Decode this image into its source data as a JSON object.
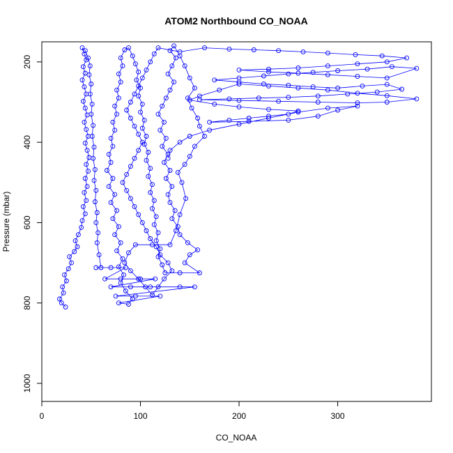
{
  "chart_data": {
    "type": "scatter",
    "title": "ATOM2 Northbound CO_NOAA",
    "xlabel": "CO_NOAA",
    "ylabel": "Pressure (mbar)",
    "xlim": [
      0,
      395
    ],
    "ylim": [
      1045,
      150
    ],
    "y_reversed": true,
    "x_ticks": [
      0,
      100,
      200,
      300
    ],
    "y_ticks": [
      200,
      400,
      600,
      800,
      1000
    ],
    "grid": false,
    "legend": "none",
    "marker": "open-circle",
    "connected_by_lines": true,
    "color": "#0000FF",
    "series": [
      {
        "points": [
          [
            24,
            810
          ],
          [
            20,
            800
          ],
          [
            18,
            790
          ],
          [
            22,
            775
          ],
          [
            21,
            760
          ],
          [
            25,
            745
          ],
          [
            23,
            730
          ],
          [
            27,
            715
          ],
          [
            30,
            700
          ],
          [
            28,
            685
          ],
          [
            33,
            672
          ],
          [
            36,
            660
          ],
          [
            34,
            645
          ],
          [
            37,
            630
          ],
          [
            40,
            612
          ],
          [
            41,
            595
          ],
          [
            44,
            578
          ],
          [
            42,
            560
          ],
          [
            45,
            545
          ],
          [
            43,
            525
          ],
          [
            46,
            510
          ],
          [
            44,
            490
          ],
          [
            47,
            472
          ],
          [
            45,
            455
          ],
          [
            48,
            438
          ],
          [
            46,
            420
          ],
          [
            44,
            402
          ],
          [
            47,
            385
          ],
          [
            45,
            368
          ],
          [
            43,
            350
          ],
          [
            46,
            332
          ],
          [
            44,
            315
          ],
          [
            42,
            298
          ],
          [
            45,
            280
          ],
          [
            43,
            262
          ],
          [
            41,
            245
          ],
          [
            44,
            228
          ],
          [
            42,
            212
          ],
          [
            45,
            195
          ],
          [
            43,
            180
          ],
          [
            41,
            165
          ],
          [
            44,
            172
          ],
          [
            47,
            190
          ],
          [
            49,
            210
          ],
          [
            48,
            232
          ],
          [
            50,
            255
          ],
          [
            49,
            280
          ],
          [
            51,
            305
          ],
          [
            50,
            330
          ],
          [
            52,
            358
          ],
          [
            51,
            385
          ],
          [
            53,
            412
          ],
          [
            52,
            440
          ],
          [
            54,
            468
          ],
          [
            53,
            495
          ],
          [
            55,
            520
          ],
          [
            54,
            548
          ],
          [
            56,
            575
          ],
          [
            55,
            600
          ],
          [
            57,
            625
          ],
          [
            56,
            650
          ],
          [
            58,
            680
          ],
          [
            60,
            712
          ],
          [
            55,
            712
          ],
          [
            70,
            712
          ],
          [
            85,
            712
          ],
          [
            64,
            740
          ],
          [
            80,
            740
          ],
          [
            100,
            740
          ],
          [
            115,
            740
          ],
          [
            70,
            760
          ],
          [
            90,
            760
          ],
          [
            110,
            760
          ],
          [
            140,
            760
          ],
          [
            155,
            760
          ],
          [
            75,
            783
          ],
          [
            95,
            783
          ],
          [
            120,
            783
          ],
          [
            78,
            800
          ],
          [
            88,
            803
          ],
          [
            92,
            790
          ],
          [
            85,
            770
          ],
          [
            80,
            750
          ],
          [
            83,
            730
          ],
          [
            78,
            710
          ],
          [
            82,
            690
          ],
          [
            76,
            670
          ],
          [
            80,
            650
          ],
          [
            74,
            630
          ],
          [
            78,
            610
          ],
          [
            72,
            590
          ],
          [
            76,
            570
          ],
          [
            70,
            550
          ],
          [
            74,
            530
          ],
          [
            68,
            510
          ],
          [
            72,
            490
          ],
          [
            66,
            470
          ],
          [
            70,
            450
          ],
          [
            68,
            430
          ],
          [
            72,
            410
          ],
          [
            70,
            390
          ],
          [
            74,
            370
          ],
          [
            72,
            350
          ],
          [
            76,
            330
          ],
          [
            74,
            310
          ],
          [
            78,
            290
          ],
          [
            76,
            270
          ],
          [
            80,
            250
          ],
          [
            78,
            230
          ],
          [
            82,
            210
          ],
          [
            80,
            190
          ],
          [
            84,
            170
          ],
          [
            88,
            165
          ],
          [
            92,
            185
          ],
          [
            95,
            205
          ],
          [
            98,
            225
          ],
          [
            96,
            245
          ],
          [
            100,
            265
          ],
          [
            98,
            285
          ],
          [
            102,
            305
          ],
          [
            100,
            325
          ],
          [
            104,
            345
          ],
          [
            102,
            365
          ],
          [
            106,
            385
          ],
          [
            104,
            405
          ],
          [
            108,
            425
          ],
          [
            106,
            445
          ],
          [
            110,
            465
          ],
          [
            108,
            485
          ],
          [
            112,
            505
          ],
          [
            110,
            525
          ],
          [
            114,
            545
          ],
          [
            112,
            565
          ],
          [
            116,
            585
          ],
          [
            114,
            605
          ],
          [
            118,
            625
          ],
          [
            116,
            645
          ],
          [
            120,
            665
          ],
          [
            118,
            685
          ],
          [
            122,
            705
          ],
          [
            125,
            725
          ],
          [
            140,
            725
          ],
          [
            160,
            725
          ],
          [
            145,
            700
          ],
          [
            150,
            680
          ],
          [
            158,
            668
          ],
          [
            148,
            650
          ],
          [
            140,
            630
          ],
          [
            138,
            610
          ],
          [
            132,
            590
          ],
          [
            135,
            570
          ],
          [
            130,
            550
          ],
          [
            128,
            530
          ],
          [
            132,
            510
          ],
          [
            126,
            490
          ],
          [
            130,
            470
          ],
          [
            124,
            450
          ],
          [
            128,
            430
          ],
          [
            122,
            410
          ],
          [
            126,
            390
          ],
          [
            120,
            370
          ],
          [
            124,
            350
          ],
          [
            118,
            330
          ],
          [
            122,
            310
          ],
          [
            126,
            290
          ],
          [
            130,
            270
          ],
          [
            134,
            250
          ],
          [
            128,
            230
          ],
          [
            132,
            210
          ],
          [
            136,
            190
          ],
          [
            130,
            172
          ],
          [
            134,
            160
          ],
          [
            140,
            185
          ],
          [
            145,
            210
          ],
          [
            150,
            240
          ],
          [
            155,
            265
          ],
          [
            148,
            290
          ],
          [
            152,
            315
          ],
          [
            158,
            340
          ],
          [
            160,
            360
          ],
          [
            165,
            385
          ],
          [
            155,
            410
          ],
          [
            150,
            435
          ],
          [
            145,
            455
          ],
          [
            138,
            475
          ],
          [
            142,
            500
          ],
          [
            146,
            540
          ],
          [
            140,
            580
          ],
          [
            136,
            620
          ],
          [
            130,
            655
          ],
          [
            112,
            655
          ],
          [
            95,
            655
          ],
          [
            88,
            675
          ],
          [
            84,
            700
          ],
          [
            90,
            720
          ],
          [
            98,
            740
          ],
          [
            105,
            760
          ],
          [
            112,
            780
          ],
          [
            118,
            760
          ],
          [
            124,
            740
          ],
          [
            132,
            720
          ],
          [
            128,
            700
          ],
          [
            120,
            680
          ],
          [
            116,
            660
          ],
          [
            110,
            640
          ],
          [
            106,
            620
          ],
          [
            102,
            600
          ],
          [
            98,
            580
          ],
          [
            94,
            560
          ],
          [
            90,
            540
          ],
          [
            86,
            520
          ],
          [
            82,
            500
          ],
          [
            86,
            480
          ],
          [
            90,
            460
          ],
          [
            94,
            440
          ],
          [
            98,
            420
          ],
          [
            102,
            400
          ],
          [
            98,
            380
          ],
          [
            94,
            360
          ],
          [
            90,
            340
          ],
          [
            86,
            320
          ],
          [
            90,
            300
          ],
          [
            94,
            280
          ],
          [
            98,
            260
          ],
          [
            102,
            240
          ],
          [
            106,
            220
          ],
          [
            110,
            200
          ],
          [
            114,
            180
          ],
          [
            118,
            165
          ],
          [
            140,
            175
          ],
          [
            165,
            165
          ],
          [
            190,
            168
          ],
          [
            215,
            170
          ],
          [
            240,
            172
          ],
          [
            265,
            175
          ],
          [
            290,
            178
          ],
          [
            318,
            182
          ],
          [
            345,
            185
          ],
          [
            370,
            190
          ],
          [
            350,
            200
          ],
          [
            320,
            205
          ],
          [
            290,
            210
          ],
          [
            260,
            215
          ],
          [
            230,
            218
          ],
          [
            200,
            220
          ],
          [
            230,
            225
          ],
          [
            260,
            228
          ],
          [
            290,
            232
          ],
          [
            320,
            236
          ],
          [
            350,
            240
          ],
          [
            380,
            216
          ],
          [
            355,
            212
          ],
          [
            330,
            218
          ],
          [
            300,
            222
          ],
          [
            275,
            226
          ],
          [
            250,
            230
          ],
          [
            225,
            235
          ],
          [
            200,
            240
          ],
          [
            175,
            245
          ],
          [
            200,
            250
          ],
          [
            225,
            255
          ],
          [
            250,
            258
          ],
          [
            275,
            262
          ],
          [
            300,
            265
          ],
          [
            325,
            260
          ],
          [
            350,
            256
          ],
          [
            365,
            268
          ],
          [
            340,
            275
          ],
          [
            310,
            280
          ],
          [
            280,
            285
          ],
          [
            250,
            288
          ],
          [
            220,
            290
          ],
          [
            190,
            292
          ],
          [
            160,
            294
          ],
          [
            200,
            296
          ],
          [
            240,
            298
          ],
          [
            280,
            300
          ],
          [
            320,
            302
          ],
          [
            350,
            300
          ],
          [
            380,
            292
          ],
          [
            350,
            284
          ],
          [
            320,
            278
          ],
          [
            290,
            270
          ],
          [
            260,
            265
          ],
          [
            230,
            260
          ],
          [
            200,
            255
          ],
          [
            180,
            270
          ],
          [
            160,
            285
          ],
          [
            150,
            295
          ],
          [
            175,
            305
          ],
          [
            200,
            312
          ],
          [
            230,
            318
          ],
          [
            260,
            322
          ],
          [
            250,
            330
          ],
          [
            230,
            335
          ],
          [
            210,
            340
          ],
          [
            190,
            345
          ],
          [
            170,
            350
          ],
          [
            210,
            348
          ],
          [
            250,
            345
          ],
          [
            280,
            335
          ],
          [
            300,
            320
          ],
          [
            320,
            310
          ],
          [
            290,
            315
          ],
          [
            260,
            325
          ],
          [
            230,
            340
          ],
          [
            200,
            355
          ],
          [
            170,
            370
          ],
          [
            150,
            385
          ],
          [
            140,
            400
          ],
          [
            130,
            420
          ],
          [
            128,
            440
          ]
        ]
      }
    ]
  }
}
